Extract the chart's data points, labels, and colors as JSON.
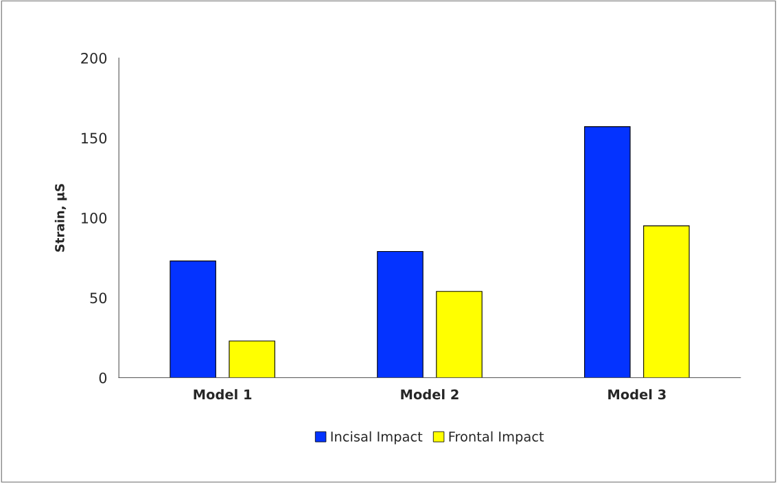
{
  "chart_data": {
    "type": "bar",
    "ylabel": "Strain, µS",
    "categories": [
      "Model 1",
      "Model 2",
      "Model 3"
    ],
    "series": [
      {
        "name": "Incisal Impact",
        "color": "#0433ff",
        "values": [
          73,
          79,
          157
        ]
      },
      {
        "name": "Frontal Impact",
        "color": "#ffff00",
        "values": [
          23,
          54,
          95
        ]
      }
    ],
    "ylim": [
      0,
      200
    ],
    "yticks": [
      0,
      50,
      100,
      150,
      200
    ],
    "grid": false,
    "legend": "bottom"
  }
}
